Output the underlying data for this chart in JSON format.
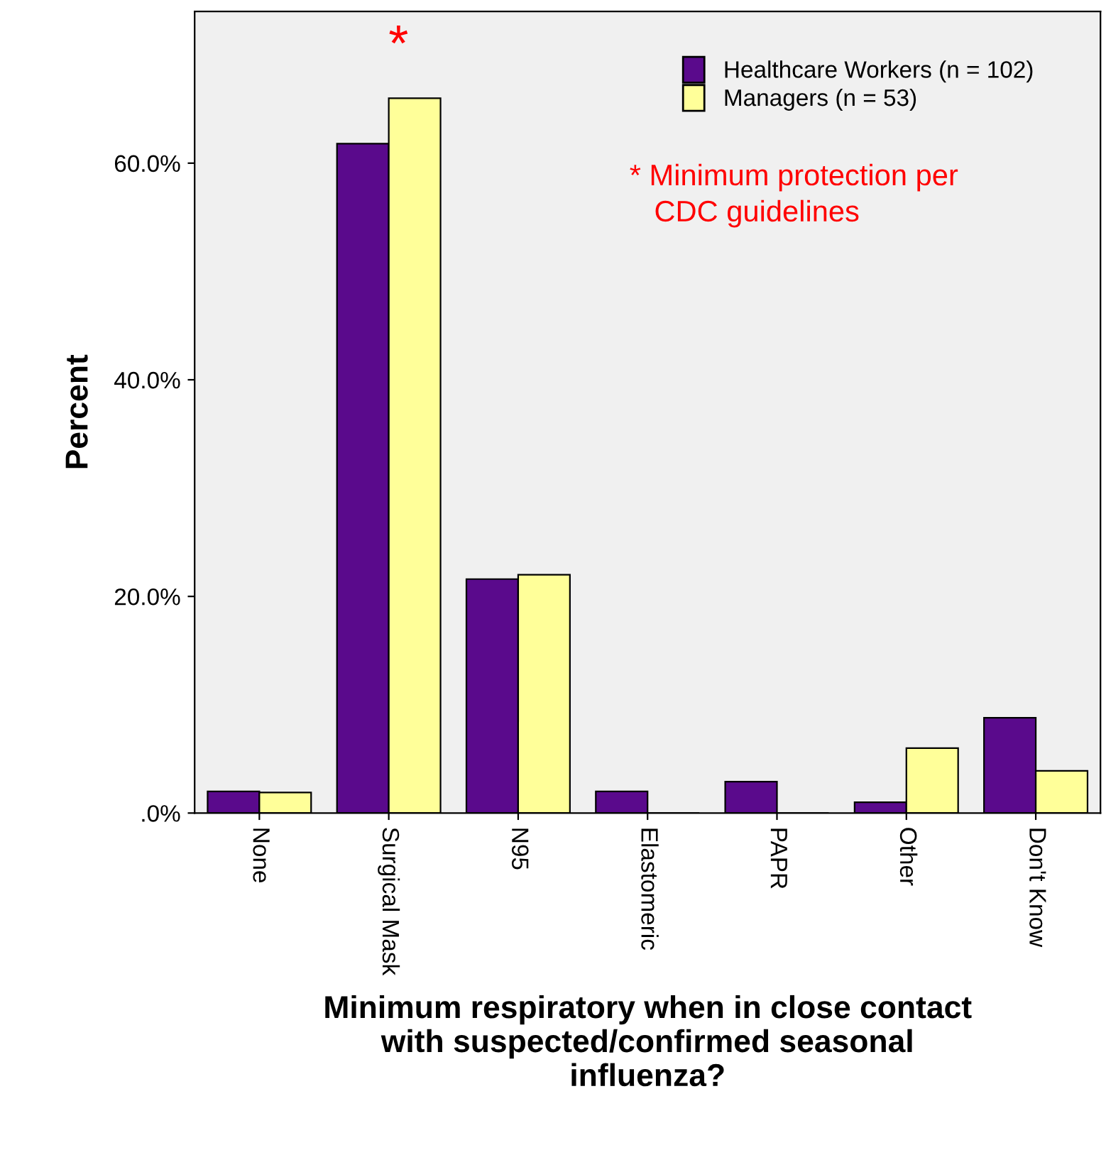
{
  "chart_data": {
    "type": "bar",
    "xlabel": "Minimum respiratory when in close contact\nwith suspected/confirmed seasonal\ninfluenza?",
    "ylabel": "Percent",
    "categories": [
      "None",
      "Surgical Mask",
      "N95",
      "Elastomeric",
      "PAPR",
      "Other",
      "Don't Know"
    ],
    "series": [
      {
        "name": "Healthcare Workers (n = 102)",
        "color": "#5a0a8c",
        "values": [
          2.0,
          61.8,
          21.6,
          2.0,
          2.9,
          1.0,
          8.8
        ]
      },
      {
        "name": "Managers (n = 53)",
        "color": "#ffff99",
        "values": [
          1.9,
          66.0,
          22.0,
          0,
          0,
          6.0,
          3.9
        ]
      }
    ],
    "ylim": [
      0,
      74
    ],
    "yticks": [
      {
        "value": 0,
        "label": ".0%"
      },
      {
        "value": 20,
        "label": "20.0%"
      },
      {
        "value": 40,
        "label": "40.0%"
      },
      {
        "value": 60,
        "label": "60.0%"
      }
    ],
    "grid": false,
    "legend": "top right",
    "annotations": [
      "*",
      "* Minimum protection per\n   CDC guidelines"
    ]
  }
}
